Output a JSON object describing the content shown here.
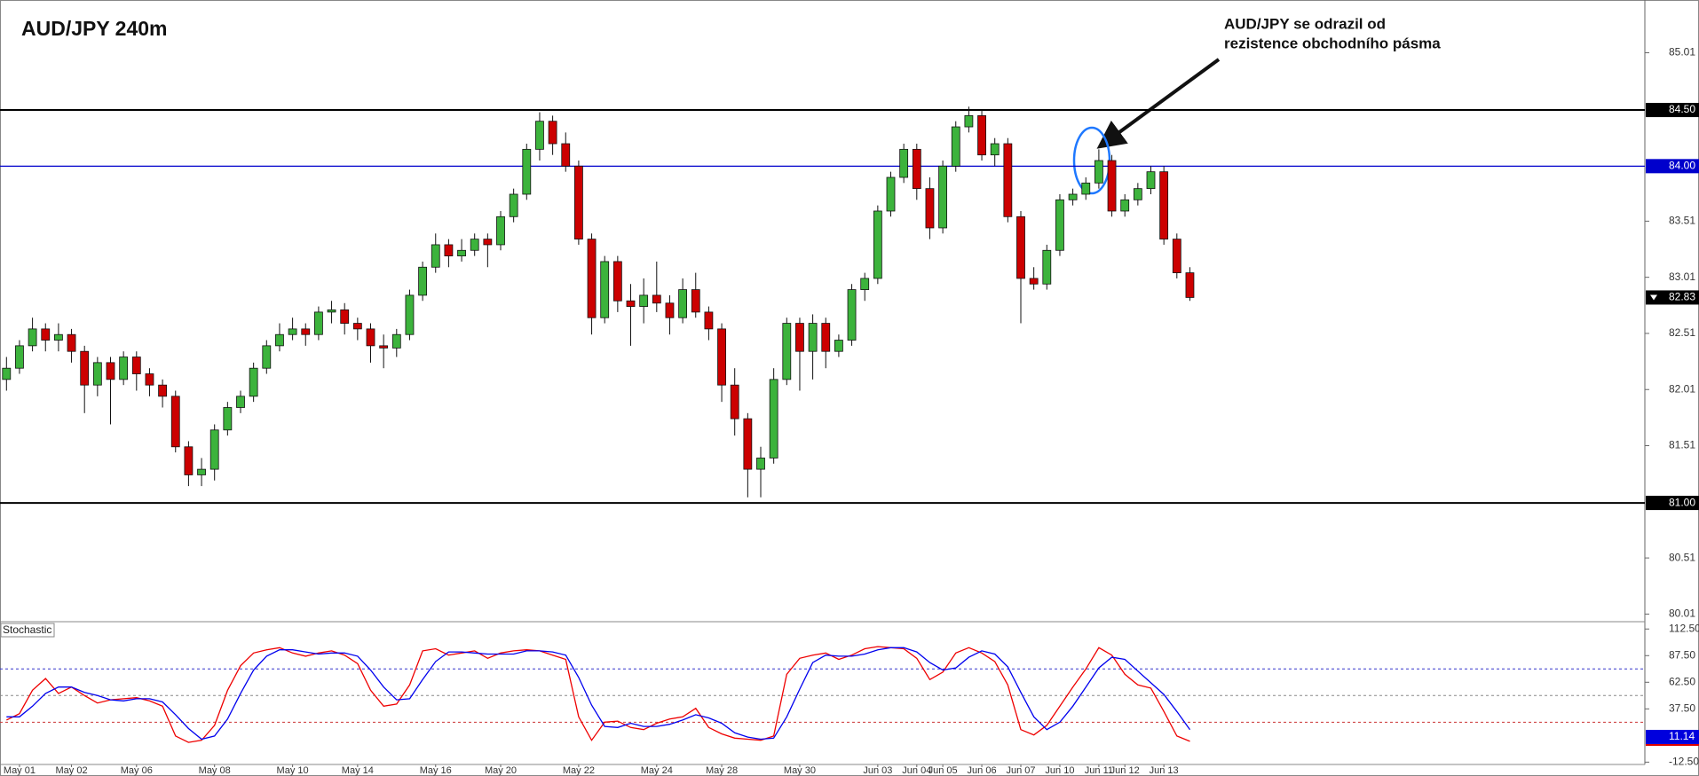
{
  "chart_data": {
    "type": "candlestick",
    "title": "AUD/JPY 240m",
    "annotation": [
      "AUD/JPY se odrazil od",
      "rezistence obchodního pásma"
    ],
    "up_color": "#3cb33c",
    "down_color": "#cc0000",
    "ylim": [
      79.95,
      85.48
    ],
    "yticks": [
      80.01,
      80.51,
      81.51,
      82.01,
      82.51,
      83.01,
      83.51,
      85.01
    ],
    "hlines": [
      {
        "value": 84.5,
        "label": "84.50",
        "color": "#000000"
      },
      {
        "value": 84,
        "label": "84.00",
        "color": "#0000cc"
      },
      {
        "value": 81,
        "label": "81.00",
        "color": "#000000"
      }
    ],
    "current_price": 82.83,
    "categories": [
      null,
      "May 01",
      null,
      null,
      null,
      "May 02",
      null,
      null,
      null,
      null,
      "May 06",
      null,
      null,
      null,
      null,
      null,
      "May 08",
      null,
      null,
      null,
      null,
      null,
      "May 10",
      null,
      null,
      null,
      null,
      "May 14",
      null,
      null,
      null,
      null,
      null,
      "May 16",
      null,
      null,
      null,
      null,
      "May 20",
      null,
      null,
      null,
      null,
      null,
      "May 22",
      null,
      null,
      null,
      null,
      null,
      "May 24",
      null,
      null,
      null,
      null,
      "May 28",
      null,
      null,
      null,
      null,
      null,
      "May 30",
      null,
      null,
      null,
      null,
      null,
      "Jun 03",
      null,
      null,
      "Jun 04",
      null,
      "Jun 05",
      null,
      null,
      "Jun 06",
      null,
      null,
      "Jun 07",
      null,
      null,
      "Jun 10",
      null,
      null,
      "Jun 11",
      null,
      "Jun 12",
      null,
      null,
      "Jun 13",
      null,
      null
    ],
    "candles": [
      [
        82.1,
        82.3,
        82.0,
        82.2
      ],
      [
        82.2,
        82.45,
        82.15,
        82.4
      ],
      [
        82.4,
        82.65,
        82.35,
        82.55
      ],
      [
        82.55,
        82.6,
        82.35,
        82.45
      ],
      [
        82.45,
        82.6,
        82.35,
        82.5
      ],
      [
        82.5,
        82.55,
        82.25,
        82.35
      ],
      [
        82.35,
        82.4,
        81.8,
        82.05
      ],
      [
        82.05,
        82.3,
        81.95,
        82.25
      ],
      [
        82.25,
        82.3,
        81.7,
        82.1
      ],
      [
        82.1,
        82.35,
        82.05,
        82.3
      ],
      [
        82.3,
        82.35,
        82.0,
        82.15
      ],
      [
        82.15,
        82.2,
        81.95,
        82.05
      ],
      [
        82.05,
        82.1,
        81.85,
        81.95
      ],
      [
        81.95,
        82.0,
        81.45,
        81.5
      ],
      [
        81.5,
        81.55,
        81.15,
        81.25
      ],
      [
        81.25,
        81.4,
        81.15,
        81.3
      ],
      [
        81.3,
        81.7,
        81.2,
        81.65
      ],
      [
        81.65,
        81.9,
        81.6,
        81.85
      ],
      [
        81.85,
        82.0,
        81.8,
        81.95
      ],
      [
        81.95,
        82.25,
        81.9,
        82.2
      ],
      [
        82.2,
        82.45,
        82.15,
        82.4
      ],
      [
        82.4,
        82.6,
        82.35,
        82.5
      ],
      [
        82.5,
        82.65,
        82.45,
        82.55
      ],
      [
        82.55,
        82.6,
        82.4,
        82.5
      ],
      [
        82.5,
        82.75,
        82.45,
        82.7
      ],
      [
        82.7,
        82.8,
        82.6,
        82.72
      ],
      [
        82.72,
        82.78,
        82.5,
        82.6
      ],
      [
        82.6,
        82.65,
        82.45,
        82.55
      ],
      [
        82.55,
        82.6,
        82.25,
        82.4
      ],
      [
        82.4,
        82.5,
        82.2,
        82.38
      ],
      [
        82.38,
        82.55,
        82.3,
        82.5
      ],
      [
        82.5,
        82.9,
        82.45,
        82.85
      ],
      [
        82.85,
        83.15,
        82.8,
        83.1
      ],
      [
        83.1,
        83.4,
        83.05,
        83.3
      ],
      [
        83.3,
        83.35,
        83.1,
        83.2
      ],
      [
        83.2,
        83.35,
        83.15,
        83.25
      ],
      [
        83.25,
        83.4,
        83.2,
        83.35
      ],
      [
        83.35,
        83.4,
        83.1,
        83.3
      ],
      [
        83.3,
        83.6,
        83.25,
        83.55
      ],
      [
        83.55,
        83.8,
        83.5,
        83.75
      ],
      [
        83.75,
        84.2,
        83.7,
        84.15
      ],
      [
        84.15,
        84.48,
        84.05,
        84.4
      ],
      [
        84.4,
        84.45,
        84.1,
        84.2
      ],
      [
        84.2,
        84.3,
        83.95,
        84.0
      ],
      [
        84.0,
        84.05,
        83.3,
        83.35
      ],
      [
        83.35,
        83.4,
        82.5,
        82.65
      ],
      [
        82.65,
        83.2,
        82.6,
        83.15
      ],
      [
        83.15,
        83.2,
        82.7,
        82.8
      ],
      [
        82.8,
        82.95,
        82.4,
        82.75
      ],
      [
        82.75,
        83.0,
        82.6,
        82.85
      ],
      [
        82.85,
        83.15,
        82.7,
        82.78
      ],
      [
        82.78,
        82.85,
        82.5,
        82.65
      ],
      [
        82.65,
        83.0,
        82.6,
        82.9
      ],
      [
        82.9,
        83.05,
        82.65,
        82.7
      ],
      [
        82.7,
        82.75,
        82.45,
        82.55
      ],
      [
        82.55,
        82.6,
        81.9,
        82.05
      ],
      [
        82.05,
        82.2,
        81.6,
        81.75
      ],
      [
        81.75,
        81.8,
        81.05,
        81.3
      ],
      [
        81.3,
        81.5,
        81.05,
        81.4
      ],
      [
        81.4,
        82.2,
        81.35,
        82.1
      ],
      [
        82.1,
        82.65,
        82.05,
        82.6
      ],
      [
        82.6,
        82.65,
        82.0,
        82.35
      ],
      [
        82.35,
        82.68,
        82.1,
        82.6
      ],
      [
        82.6,
        82.65,
        82.2,
        82.35
      ],
      [
        82.35,
        82.5,
        82.3,
        82.45
      ],
      [
        82.45,
        82.95,
        82.4,
        82.9
      ],
      [
        82.9,
        83.05,
        82.8,
        83.0
      ],
      [
        83.0,
        83.65,
        82.95,
        83.6
      ],
      [
        83.6,
        83.95,
        83.55,
        83.9
      ],
      [
        83.9,
        84.2,
        83.85,
        84.15
      ],
      [
        84.15,
        84.2,
        83.7,
        83.8
      ],
      [
        83.8,
        83.9,
        83.35,
        83.45
      ],
      [
        83.45,
        84.05,
        83.4,
        84.0
      ],
      [
        84.0,
        84.4,
        83.95,
        84.35
      ],
      [
        84.35,
        84.53,
        84.3,
        84.45
      ],
      [
        84.45,
        84.5,
        84.05,
        84.1
      ],
      [
        84.1,
        84.25,
        84.0,
        84.2
      ],
      [
        84.2,
        84.25,
        83.5,
        83.55
      ],
      [
        83.55,
        83.6,
        82.6,
        83.0
      ],
      [
        83.0,
        83.1,
        82.9,
        82.95
      ],
      [
        82.95,
        83.3,
        82.9,
        83.25
      ],
      [
        83.25,
        83.75,
        83.2,
        83.7
      ],
      [
        83.7,
        83.8,
        83.65,
        83.75
      ],
      [
        83.75,
        83.9,
        83.7,
        83.85
      ],
      [
        83.85,
        84.15,
        83.8,
        84.05
      ],
      [
        84.05,
        84.1,
        83.55,
        83.6
      ],
      [
        83.6,
        83.75,
        83.55,
        83.7
      ],
      [
        83.7,
        83.85,
        83.65,
        83.8
      ],
      [
        83.8,
        84.0,
        83.75,
        83.95
      ],
      [
        83.95,
        84.0,
        83.3,
        83.35
      ],
      [
        83.35,
        83.4,
        83.0,
        83.05
      ],
      [
        83.05,
        83.1,
        82.8,
        82.83
      ]
    ],
    "stochastic": {
      "title": "Stochastic",
      "ylim": [
        -14.7,
        117.7
      ],
      "yticks": [
        {
          "value": 112.5,
          "label": "112.50"
        },
        {
          "value": 87.5,
          "label": "87.50"
        },
        {
          "value": 62.5,
          "label": "62.50"
        },
        {
          "value": 37.5,
          "label": "37.50"
        },
        {
          "value": -12.5,
          "label": "-12.50"
        }
      ],
      "levels": [
        {
          "value": 75,
          "color": "#3333cc"
        },
        {
          "value": 50,
          "color": "#888888"
        },
        {
          "value": 25,
          "color": "#cc3333"
        }
      ],
      "current": 11.14,
      "series": [
        {
          "color": "#ee0000",
          "values": [
            27,
            33,
            55,
            66,
            52,
            58,
            50,
            43,
            46,
            47,
            48,
            45,
            40,
            12,
            6,
            8,
            22,
            55,
            78,
            90,
            93,
            95,
            90,
            87,
            90,
            92,
            88,
            80,
            55,
            40,
            42,
            60,
            92,
            94,
            88,
            90,
            92,
            85,
            90,
            92,
            93,
            92,
            88,
            84,
            30,
            8,
            25,
            26,
            20,
            18,
            24,
            28,
            30,
            38,
            20,
            14,
            10,
            9,
            8,
            12,
            70,
            85,
            88,
            90,
            84,
            88,
            94,
            96,
            95,
            94,
            85,
            65,
            72,
            90,
            95,
            90,
            82,
            60,
            18,
            13,
            22,
            40,
            58,
            75,
            95,
            88,
            70,
            60,
            57,
            35,
            12,
            7
          ]
        },
        {
          "color": "#0000ee",
          "values": [
            30,
            30,
            40,
            52,
            58,
            58,
            53,
            50,
            46,
            45,
            47,
            47,
            44,
            32,
            19,
            9,
            12,
            28,
            52,
            74,
            87,
            93,
            93,
            91,
            89,
            90,
            90,
            87,
            74,
            58,
            46,
            47,
            65,
            82,
            91,
            91,
            90,
            89,
            89,
            89,
            92,
            92,
            91,
            88,
            67,
            41,
            21,
            20,
            24,
            21,
            21,
            23,
            27,
            32,
            29,
            24,
            15,
            11,
            9,
            10,
            30,
            56,
            81,
            88,
            87,
            87,
            89,
            93,
            95,
            95,
            91,
            81,
            74,
            76,
            86,
            92,
            89,
            77,
            53,
            30,
            18,
            25,
            40,
            58,
            76,
            86,
            84,
            73,
            62,
            51,
            35,
            18
          ]
        }
      ]
    }
  }
}
